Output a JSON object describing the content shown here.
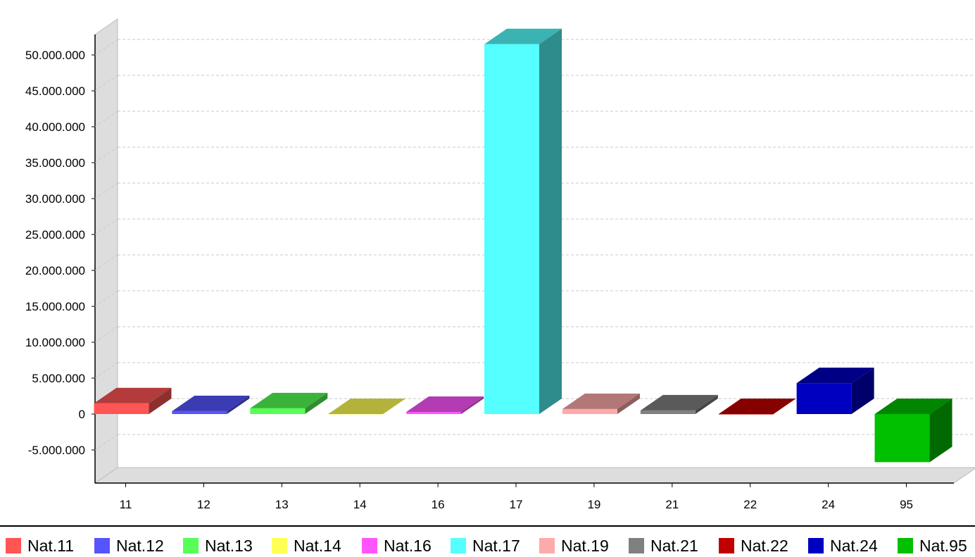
{
  "chart_data": {
    "type": "bar",
    "title": "",
    "xlabel": "",
    "ylabel": "",
    "categories": [
      "11",
      "12",
      "13",
      "14",
      "16",
      "17",
      "19",
      "21",
      "22",
      "24",
      "95"
    ],
    "values": [
      1500000,
      400000,
      800000,
      0,
      300000,
      51500000,
      700000,
      500000,
      0,
      4300000,
      -6700000
    ],
    "colors": [
      "#ff5555",
      "#5555ff",
      "#55ff55",
      "#ffff55",
      "#ff55ff",
      "#55ffff",
      "#ffaaaa",
      "#808080",
      "#c00000",
      "#0000c0",
      "#00c000"
    ],
    "y_ticks": [
      -5000000,
      0,
      5000000,
      10000000,
      15000000,
      20000000,
      25000000,
      30000000,
      35000000,
      40000000,
      45000000,
      50000000
    ],
    "y_tick_labels": [
      "-5.000.000",
      "0",
      "5.000.000",
      "10.000.000",
      "15.000.000",
      "20.000.000",
      "25.000.000",
      "30.000.000",
      "35.000.000",
      "40.000.000",
      "45.000.000",
      "50.000.000"
    ],
    "ylim": [
      -9600000,
      55000000
    ],
    "grid": true,
    "style": "3d",
    "legend_position": "bottom",
    "legend": [
      "Nat.11",
      "Nat.12",
      "Nat.13",
      "Nat.14",
      "Nat.16",
      "Nat.17",
      "Nat.19",
      "Nat.21",
      "Nat.22",
      "Nat.24",
      "Nat.95"
    ]
  }
}
